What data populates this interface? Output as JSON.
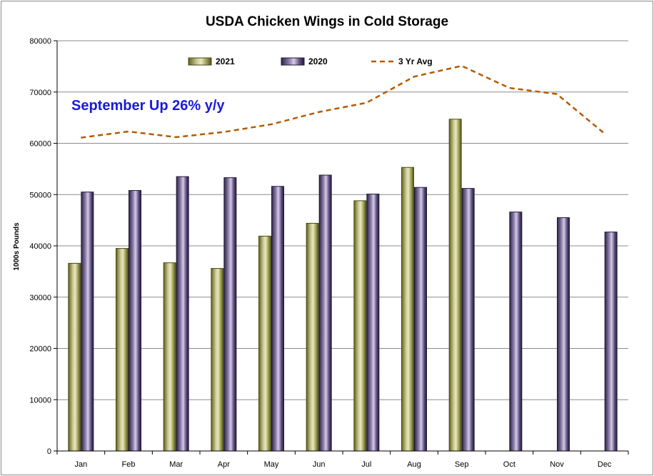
{
  "chart_data": {
    "type": "bar",
    "title": "USDA Chicken Wings in Cold Storage",
    "ylabel": "1000s Pounds",
    "xlabel": "",
    "ylim": [
      0,
      80000
    ],
    "yticks": [
      0,
      10000,
      20000,
      30000,
      40000,
      50000,
      60000,
      70000,
      80000
    ],
    "grid": true,
    "legend_position": "top",
    "categories": [
      "Jan",
      "Feb",
      "Mar",
      "Apr",
      "May",
      "Jun",
      "Jul",
      "Aug",
      "Sep",
      "Oct",
      "Nov",
      "Dec"
    ],
    "series": [
      {
        "name": "2021",
        "type": "bar",
        "color": "#8c8c3c",
        "values": [
          36600,
          39500,
          36700,
          35600,
          41900,
          44400,
          48800,
          55300,
          64700,
          null,
          null,
          null
        ]
      },
      {
        "name": "2020",
        "type": "bar",
        "color": "#5a4a78",
        "values": [
          50500,
          50800,
          53500,
          53300,
          51600,
          53800,
          50100,
          51400,
          51200,
          46600,
          45500,
          42700
        ]
      },
      {
        "name": "3 Yr Avg",
        "type": "line",
        "style": "dashed",
        "color": "#b35a00",
        "values": [
          61100,
          62300,
          61200,
          62200,
          63700,
          66100,
          67900,
          73000,
          75100,
          70800,
          69600,
          61900
        ]
      }
    ],
    "annotation": "September Up 26% y/y"
  }
}
